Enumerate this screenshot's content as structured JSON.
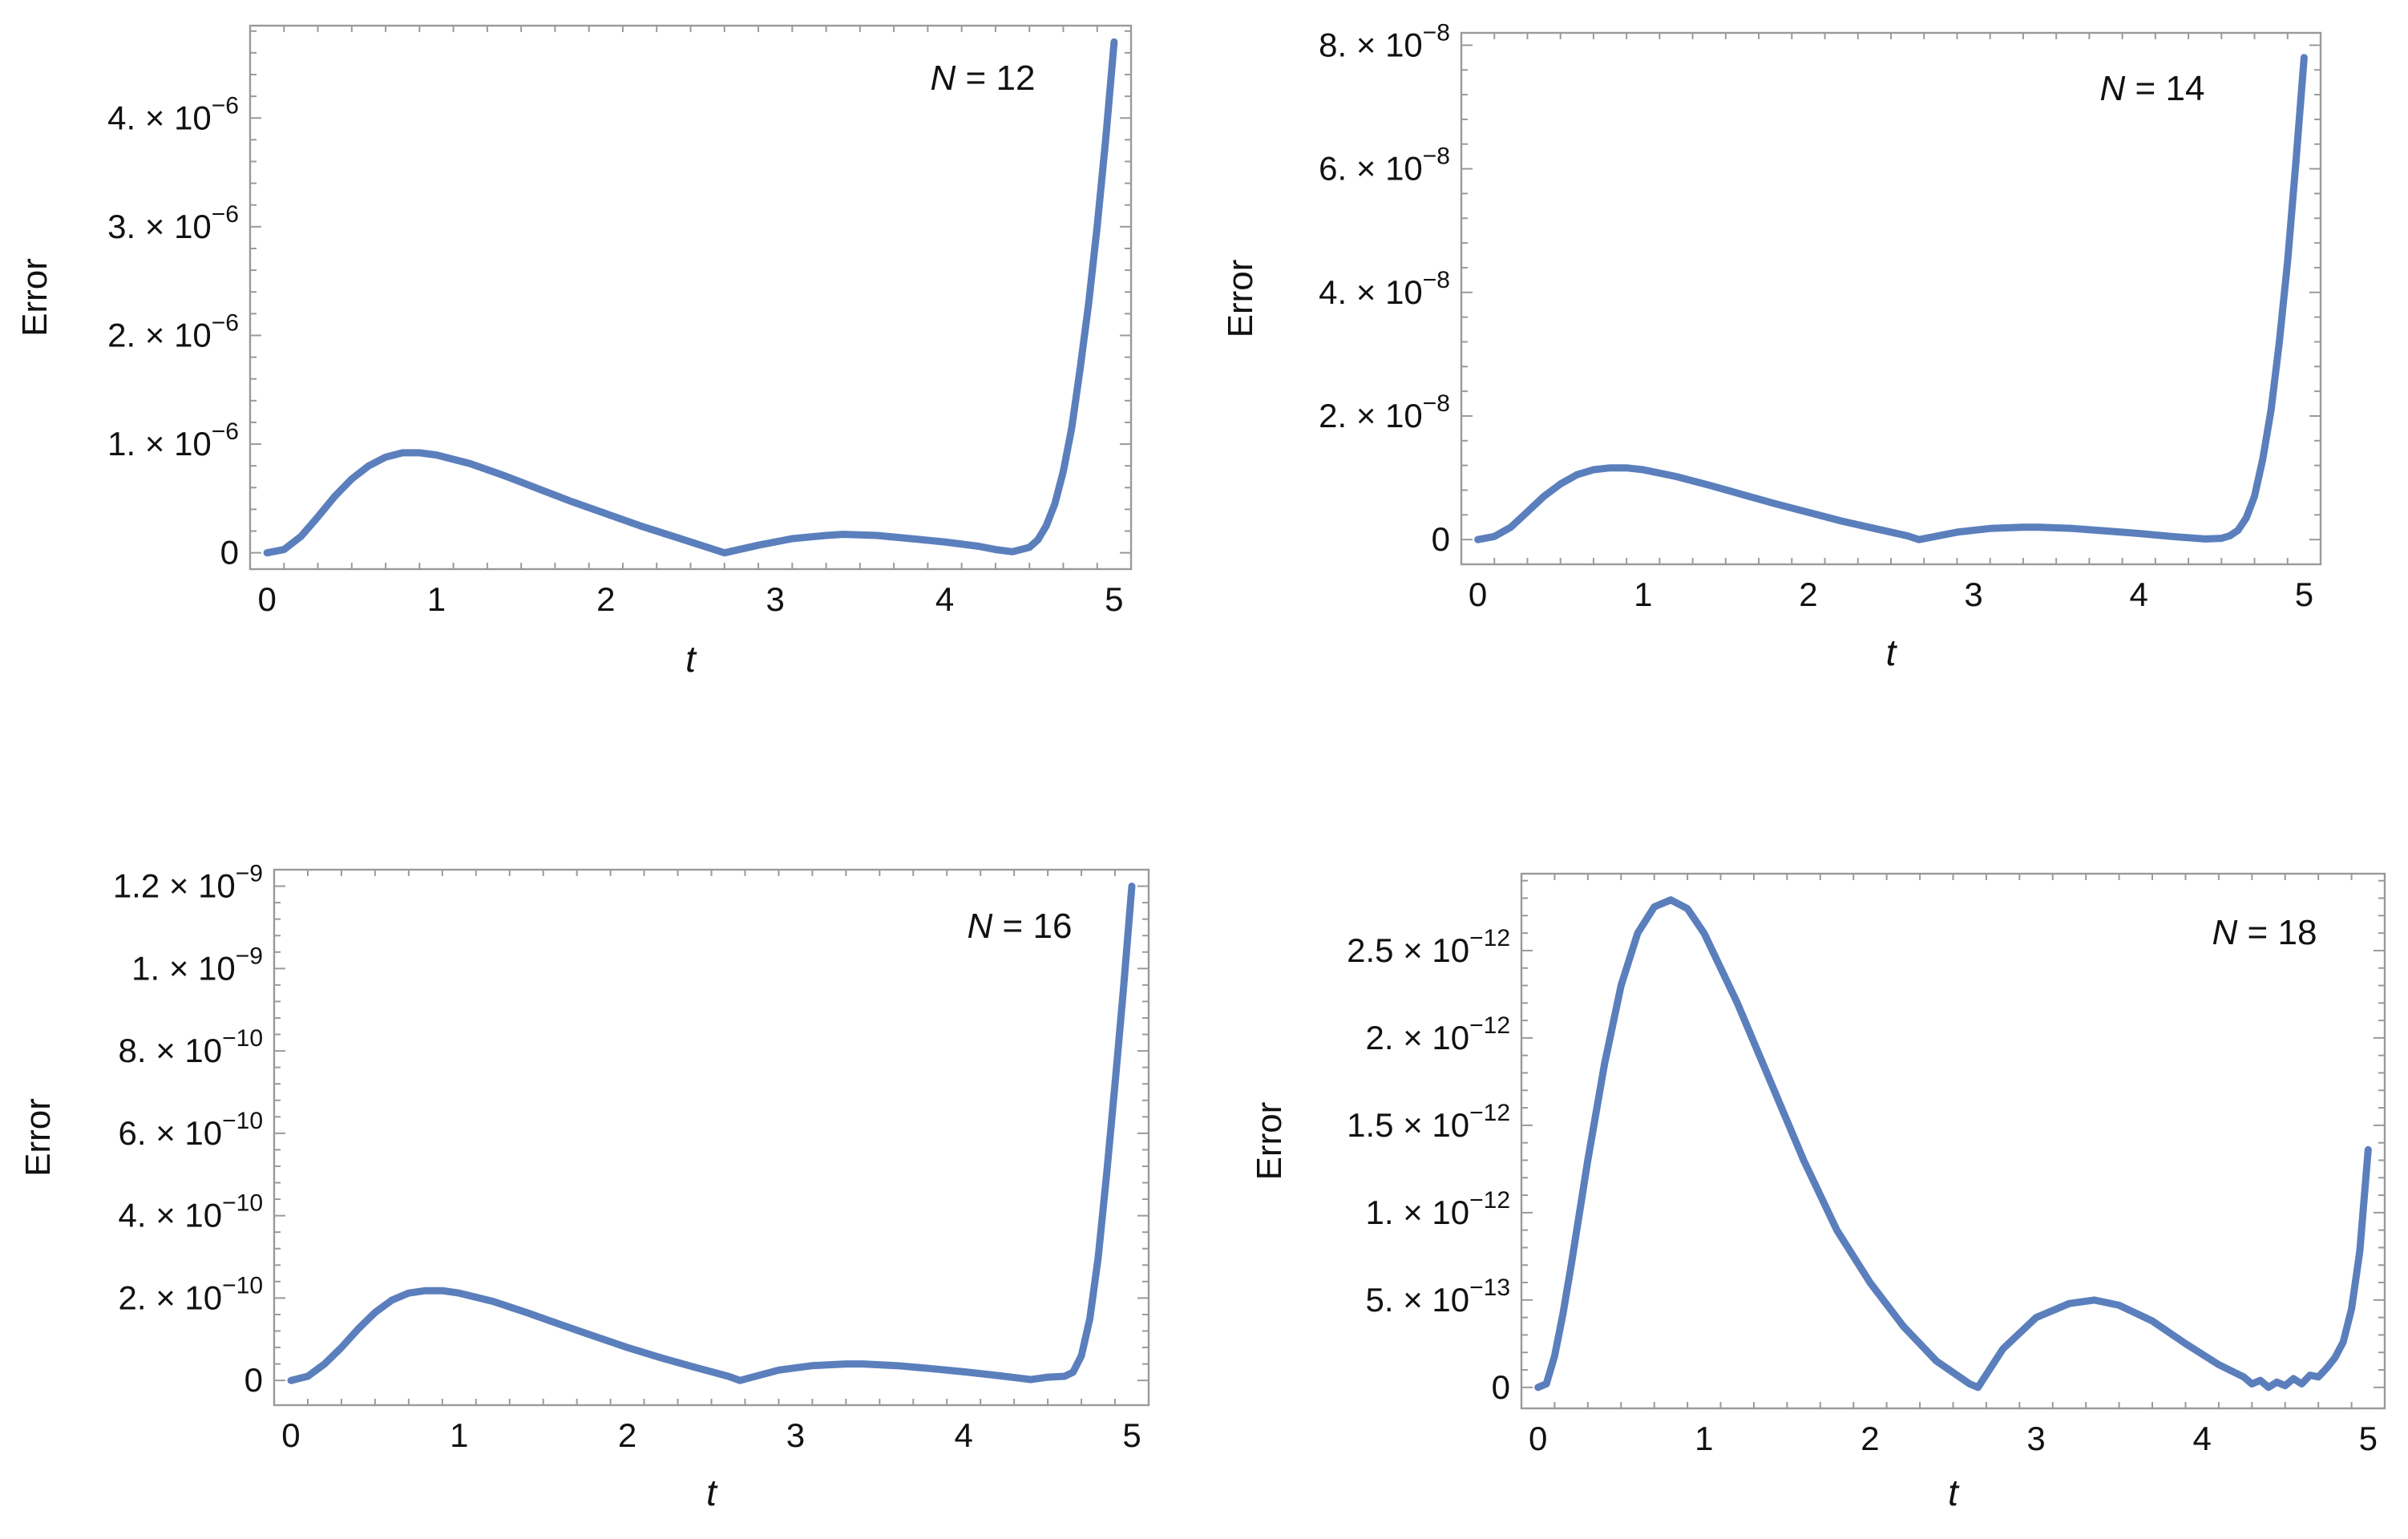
{
  "style": {
    "line_color": "#5b7fbc",
    "frame_color": "#9a9a9a"
  },
  "chart_data": [
    {
      "type": "line",
      "annotation": {
        "var": "N",
        "eq": " = ",
        "value": "12"
      },
      "xlabel": "t",
      "ylabel": "Error",
      "xlim": [
        -0.1,
        5.1
      ],
      "ylim": [
        -1.5e-07,
        4.85e-06
      ],
      "xticks": [
        0,
        1,
        2,
        3,
        4,
        5
      ],
      "xticklabels": [
        "0",
        "1",
        "2",
        "3",
        "4",
        "5"
      ],
      "yticks": [
        0,
        1e-06,
        2e-06,
        3e-06,
        4e-06
      ],
      "yticklabels": [
        {
          "m": "0",
          "e": ""
        },
        {
          "m": "1. × 10",
          "e": "−6"
        },
        {
          "m": "2. × 10",
          "e": "−6"
        },
        {
          "m": "3. × 10",
          "e": "−6"
        },
        {
          "m": "4. × 10",
          "e": "−6"
        }
      ],
      "series": [
        {
          "x": [
            0,
            0.1,
            0.2,
            0.3,
            0.4,
            0.5,
            0.6,
            0.7,
            0.8,
            0.9,
            1.0,
            1.2,
            1.4,
            1.6,
            1.8,
            2.0,
            2.2,
            2.4,
            2.6,
            2.7,
            2.9,
            3.1,
            3.3,
            3.4,
            3.6,
            3.8,
            4.0,
            4.2,
            4.3,
            4.4,
            4.5,
            4.55,
            4.6,
            4.65,
            4.7,
            4.75,
            4.8,
            4.85,
            4.9,
            4.95,
            5.0
          ],
          "y": [
            0,
            3e-08,
            1.5e-07,
            3.3e-07,
            5.2e-07,
            6.8e-07,
            8e-07,
            8.8e-07,
            9.2e-07,
            9.2e-07,
            9e-07,
            8.2e-07,
            7.1e-07,
            5.9e-07,
            4.7e-07,
            3.6e-07,
            2.5e-07,
            1.5e-07,
            5e-08,
            0,
            7e-08,
            1.3e-07,
            1.6e-07,
            1.7e-07,
            1.6e-07,
            1.3e-07,
            1e-07,
            6e-08,
            3e-08,
            1e-08,
            5e-08,
            1.2e-07,
            2.5e-07,
            4.5e-07,
            7.5e-07,
            1.15e-06,
            1.7e-06,
            2.3e-06,
            3e-06,
            3.8e-06,
            4.7e-06
          ]
        }
      ]
    },
    {
      "type": "line",
      "annotation": {
        "var": "N",
        "eq": " = ",
        "value": "14"
      },
      "xlabel": "t",
      "ylabel": "Error",
      "xlim": [
        -0.1,
        5.1
      ],
      "ylim": [
        -4e-09,
        8.2e-08
      ],
      "xticks": [
        0,
        1,
        2,
        3,
        4,
        5
      ],
      "xticklabels": [
        "0",
        "1",
        "2",
        "3",
        "4",
        "5"
      ],
      "yticks": [
        0,
        2e-08,
        4e-08,
        6e-08,
        8e-08
      ],
      "yticklabels": [
        {
          "m": "0",
          "e": ""
        },
        {
          "m": "2. × 10",
          "e": "−8"
        },
        {
          "m": "4. × 10",
          "e": "−8"
        },
        {
          "m": "6. × 10",
          "e": "−8"
        },
        {
          "m": "8. × 10",
          "e": "−8"
        }
      ],
      "series": [
        {
          "x": [
            0,
            0.1,
            0.2,
            0.3,
            0.4,
            0.5,
            0.6,
            0.7,
            0.8,
            0.9,
            1.0,
            1.2,
            1.4,
            1.6,
            1.8,
            2.0,
            2.2,
            2.4,
            2.6,
            2.67,
            2.9,
            3.1,
            3.3,
            3.4,
            3.6,
            3.8,
            4.0,
            4.2,
            4.4,
            4.5,
            4.55,
            4.6,
            4.65,
            4.7,
            4.75,
            4.8,
            4.85,
            4.9,
            4.95,
            5.0
          ],
          "y": [
            0,
            5e-10,
            2e-09,
            4.5e-09,
            7e-09,
            9e-09,
            1.05e-08,
            1.13e-08,
            1.16e-08,
            1.16e-08,
            1.13e-08,
            1.02e-08,
            8.8e-09,
            7.3e-09,
            5.8e-09,
            4.4e-09,
            3e-09,
            1.8e-09,
            6e-10,
            0,
            1.2e-09,
            1.8e-09,
            2e-09,
            2e-09,
            1.8e-09,
            1.4e-09,
            1e-09,
            5e-10,
            1e-10,
            2e-10,
            6e-10,
            1.5e-09,
            3.5e-09,
            7e-09,
            1.3e-08,
            2.1e-08,
            3.2e-08,
            4.5e-08,
            6.1e-08,
            7.8e-08
          ]
        }
      ]
    },
    {
      "type": "line",
      "annotation": {
        "var": "N",
        "eq": " = ",
        "value": "16"
      },
      "xlabel": "t",
      "ylabel": "Error",
      "xlim": [
        -0.1,
        5.1
      ],
      "ylim": [
        -6e-11,
        1.24e-09
      ],
      "xticks": [
        0,
        1,
        2,
        3,
        4,
        5
      ],
      "xticklabels": [
        "0",
        "1",
        "2",
        "3",
        "4",
        "5"
      ],
      "yticks": [
        0,
        2e-10,
        4e-10,
        6e-10,
        8e-10,
        1e-09,
        1.2e-09
      ],
      "yticklabels": [
        {
          "m": "0",
          "e": ""
        },
        {
          "m": "2. × 10",
          "e": "−10"
        },
        {
          "m": "4. × 10",
          "e": "−10"
        },
        {
          "m": "6. × 10",
          "e": "−10"
        },
        {
          "m": "8. × 10",
          "e": "−10"
        },
        {
          "m": "1. × 10",
          "e": "−9"
        },
        {
          "m": "1.2 × 10",
          "e": "−9"
        }
      ],
      "series": [
        {
          "x": [
            0,
            0.1,
            0.2,
            0.3,
            0.4,
            0.5,
            0.6,
            0.7,
            0.8,
            0.9,
            1.0,
            1.2,
            1.4,
            1.6,
            1.8,
            2.0,
            2.2,
            2.4,
            2.6,
            2.67,
            2.9,
            3.1,
            3.3,
            3.4,
            3.6,
            3.8,
            4.0,
            4.2,
            4.4,
            4.5,
            4.6,
            4.65,
            4.7,
            4.75,
            4.8,
            4.85,
            4.9,
            4.95,
            5.0
          ],
          "y": [
            0,
            1e-11,
            4e-11,
            8e-11,
            1.25e-10,
            1.65e-10,
            1.95e-10,
            2.12e-10,
            2.18e-10,
            2.18e-10,
            2.12e-10,
            1.92e-10,
            1.65e-10,
            1.36e-10,
            1.08e-10,
            8e-11,
            5.5e-11,
            3.2e-11,
            1e-11,
            0,
            2.5e-11,
            3.6e-11,
            4e-11,
            4e-11,
            3.6e-11,
            2.9e-11,
            2.1e-11,
            1.2e-11,
            2e-12,
            8e-12,
            1e-11,
            2e-11,
            6e-11,
            1.5e-10,
            3e-10,
            5e-10,
            7.2e-10,
            9.5e-10,
            1.2e-09
          ]
        }
      ]
    },
    {
      "type": "line",
      "annotation": {
        "var": "N",
        "eq": " = ",
        "value": "18"
      },
      "xlabel": "t",
      "ylabel": "Error",
      "xlim": [
        -0.1,
        5.1
      ],
      "ylim": [
        -1.2e-13,
        2.94e-12
      ],
      "xticks": [
        0,
        1,
        2,
        3,
        4,
        5
      ],
      "xticklabels": [
        "0",
        "1",
        "2",
        "3",
        "4",
        "5"
      ],
      "yticks": [
        0,
        5e-13,
        1e-12,
        1.5e-12,
        2e-12,
        2.5e-12
      ],
      "yticklabels": [
        {
          "m": "0",
          "e": ""
        },
        {
          "m": "5. × 10",
          "e": "−13"
        },
        {
          "m": "1. × 10",
          "e": "−12"
        },
        {
          "m": "1.5 × 10",
          "e": "−12"
        },
        {
          "m": "2. × 10",
          "e": "−12"
        },
        {
          "m": "2.5 × 10",
          "e": "−12"
        }
      ],
      "series": [
        {
          "x": [
            0,
            0.05,
            0.1,
            0.15,
            0.2,
            0.3,
            0.4,
            0.5,
            0.6,
            0.7,
            0.8,
            0.9,
            1.0,
            1.2,
            1.4,
            1.6,
            1.8,
            2.0,
            2.2,
            2.4,
            2.6,
            2.65,
            2.8,
            3.0,
            3.2,
            3.35,
            3.5,
            3.7,
            3.9,
            4.1,
            4.25,
            4.3,
            4.35,
            4.4,
            4.45,
            4.5,
            4.55,
            4.6,
            4.65,
            4.7,
            4.75,
            4.8,
            4.85,
            4.9,
            4.95,
            5.0
          ],
          "y": [
            0,
            2e-14,
            1.8e-13,
            4.2e-13,
            7e-13,
            1.3e-12,
            1.85e-12,
            2.3e-12,
            2.6e-12,
            2.75e-12,
            2.79e-12,
            2.74e-12,
            2.6e-12,
            2.2e-12,
            1.75e-12,
            1.3e-12,
            9e-13,
            6e-13,
            3.5e-13,
            1.5e-13,
            2e-14,
            0,
            2.2e-13,
            4e-13,
            4.8e-13,
            5e-13,
            4.7e-13,
            3.8e-13,
            2.5e-13,
            1.3e-13,
            6e-14,
            2e-14,
            4e-14,
            0,
            3e-14,
            1e-14,
            5e-14,
            2e-14,
            7e-14,
            6e-14,
            1.1e-13,
            1.7e-13,
            2.6e-13,
            4.5e-13,
            7.8e-13,
            1.36e-12
          ]
        }
      ]
    }
  ]
}
